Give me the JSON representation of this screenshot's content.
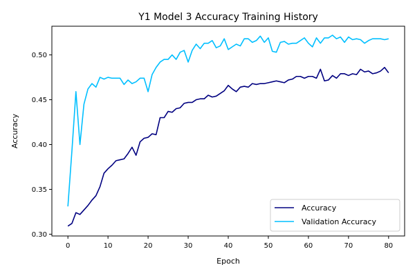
{
  "chart_data": {
    "type": "line",
    "title": "Y1 Model 3 Accuracy Training History",
    "xlabel": "Epoch",
    "ylabel": "Accuracy",
    "xlim": [
      -4,
      84
    ],
    "ylim": [
      0.298,
      0.532
    ],
    "xticks": [
      0,
      10,
      20,
      30,
      40,
      50,
      60,
      70,
      80
    ],
    "yticks": [
      0.3,
      0.35,
      0.4,
      0.45,
      0.5
    ],
    "ytick_labels": [
      "0.30",
      "0.35",
      "0.40",
      "0.45",
      "0.50"
    ],
    "grid": false,
    "legend_position": "lower-right",
    "series": [
      {
        "name": "Accuracy",
        "color": "#000080",
        "values": [
          0.309,
          0.312,
          0.324,
          0.322,
          0.327,
          0.332,
          0.338,
          0.343,
          0.353,
          0.368,
          0.373,
          0.377,
          0.382,
          0.383,
          0.384,
          0.39,
          0.397,
          0.388,
          0.403,
          0.407,
          0.408,
          0.412,
          0.411,
          0.43,
          0.43,
          0.437,
          0.436,
          0.44,
          0.441,
          0.446,
          0.447,
          0.447,
          0.45,
          0.451,
          0.451,
          0.455,
          0.453,
          0.454,
          0.457,
          0.46,
          0.466,
          0.462,
          0.459,
          0.464,
          0.465,
          0.464,
          0.468,
          0.467,
          0.468,
          0.468,
          0.469,
          0.47,
          0.471,
          0.47,
          0.469,
          0.472,
          0.473,
          0.476,
          0.476,
          0.474,
          0.476,
          0.476,
          0.474,
          0.484,
          0.471,
          0.472,
          0.477,
          0.474,
          0.479,
          0.479,
          0.477,
          0.479,
          0.478,
          0.484,
          0.481,
          0.482,
          0.479,
          0.48,
          0.482,
          0.486,
          0.48
        ]
      },
      {
        "name": "Validation Accuracy",
        "color": "#00BFFF",
        "values": [
          0.331,
          0.393,
          0.459,
          0.4,
          0.445,
          0.462,
          0.468,
          0.464,
          0.475,
          0.473,
          0.475,
          0.474,
          0.474,
          0.474,
          0.467,
          0.472,
          0.468,
          0.47,
          0.474,
          0.474,
          0.459,
          0.478,
          0.486,
          0.492,
          0.495,
          0.495,
          0.5,
          0.495,
          0.503,
          0.505,
          0.492,
          0.505,
          0.512,
          0.507,
          0.513,
          0.513,
          0.516,
          0.508,
          0.51,
          0.518,
          0.506,
          0.509,
          0.512,
          0.51,
          0.518,
          0.518,
          0.514,
          0.516,
          0.521,
          0.514,
          0.519,
          0.504,
          0.503,
          0.514,
          0.515,
          0.512,
          0.513,
          0.513,
          0.516,
          0.519,
          0.513,
          0.509,
          0.519,
          0.513,
          0.519,
          0.519,
          0.522,
          0.518,
          0.52,
          0.514,
          0.52,
          0.517,
          0.518,
          0.517,
          0.513,
          0.516,
          0.518,
          0.518,
          0.518,
          0.517,
          0.518
        ]
      }
    ]
  }
}
